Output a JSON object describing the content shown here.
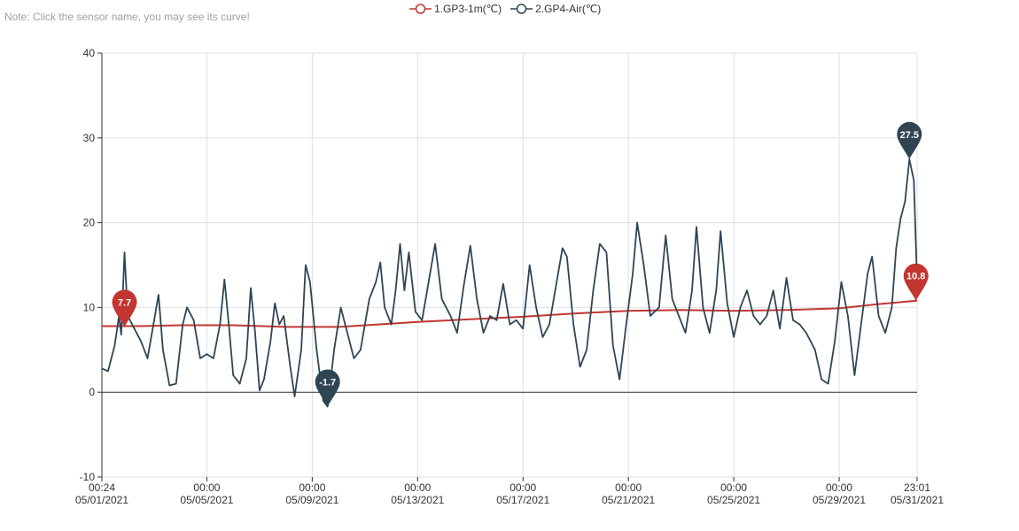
{
  "note": "Note: Click the sensor name, you may see its curve!",
  "colors": {
    "series1": "#c23531",
    "series2": "#2f4554",
    "grid": "#e0e0e0",
    "axis": "#333333",
    "text": "#333333"
  },
  "chart_data": {
    "type": "line",
    "xlim": [
      "2021-05-01 00:24",
      "2021-05-31 23:01"
    ],
    "ylim": [
      -10,
      40
    ],
    "y_ticks": [
      "40",
      "30",
      "20",
      "10",
      "0",
      "-10"
    ],
    "x_ticks": [
      {
        "time": "00:24",
        "date": "05/01/2021"
      },
      {
        "time": "00:00",
        "date": "05/05/2021"
      },
      {
        "time": "00:00",
        "date": "05/09/2021"
      },
      {
        "time": "00:00",
        "date": "05/13/2021"
      },
      {
        "time": "00:00",
        "date": "05/17/2021"
      },
      {
        "time": "00:00",
        "date": "05/21/2021"
      },
      {
        "time": "00:00",
        "date": "05/25/2021"
      },
      {
        "time": "00:00",
        "date": "05/29/2021"
      },
      {
        "time": "23:01",
        "date": "05/31/2021"
      }
    ],
    "grid": true,
    "legend_position": "top-center",
    "series": [
      {
        "name": "1.GP3-1m(℃)",
        "color": "#c23531",
        "points": [
          [
            "2021-05-01 00:24",
            7.8
          ],
          [
            "2021-05-02 12:00",
            7.8
          ],
          [
            "2021-05-04 00:00",
            7.9
          ],
          [
            "2021-05-06 00:00",
            7.9
          ],
          [
            "2021-05-08 00:00",
            7.7
          ],
          [
            "2021-05-10 00:00",
            7.7
          ],
          [
            "2021-05-11 12:00",
            8.0
          ],
          [
            "2021-05-13 00:00",
            8.3
          ],
          [
            "2021-05-15 00:00",
            8.6
          ],
          [
            "2021-05-17 00:00",
            8.9
          ],
          [
            "2021-05-19 00:00",
            9.3
          ],
          [
            "2021-05-21 00:00",
            9.6
          ],
          [
            "2021-05-23 00:00",
            9.7
          ],
          [
            "2021-05-25 00:00",
            9.6
          ],
          [
            "2021-05-27 00:00",
            9.7
          ],
          [
            "2021-05-29 00:00",
            9.9
          ],
          [
            "2021-05-30 12:00",
            10.4
          ],
          [
            "2021-05-31 23:01",
            10.8
          ]
        ],
        "markers": [
          {
            "label": "7.7",
            "x": "2021-05-01 21:00",
            "y": 7.7
          },
          {
            "label": "10.8",
            "x": "2021-05-31 22:00",
            "y": 10.8
          }
        ]
      },
      {
        "name": "2.GP4-Air(℃)",
        "color": "#2f4554",
        "points": [
          [
            "2021-05-01 00:24",
            2.8
          ],
          [
            "2021-05-01 06:00",
            2.5
          ],
          [
            "2021-05-01 12:00",
            5.5
          ],
          [
            "2021-05-01 16:00",
            9.0
          ],
          [
            "2021-05-01 18:00",
            6.8
          ],
          [
            "2021-05-01 21:00",
            16.5
          ],
          [
            "2021-05-02 00:00",
            9.0
          ],
          [
            "2021-05-02 06:00",
            7.5
          ],
          [
            "2021-05-02 12:00",
            6.0
          ],
          [
            "2021-05-02 18:00",
            4.0
          ],
          [
            "2021-05-03 00:00",
            8.5
          ],
          [
            "2021-05-03 04:00",
            11.5
          ],
          [
            "2021-05-03 08:00",
            5.0
          ],
          [
            "2021-05-03 14:00",
            0.8
          ],
          [
            "2021-05-03 20:00",
            1.0
          ],
          [
            "2021-05-04 02:00",
            8.0
          ],
          [
            "2021-05-04 06:00",
            10.0
          ],
          [
            "2021-05-04 12:00",
            8.5
          ],
          [
            "2021-05-04 18:00",
            4.0
          ],
          [
            "2021-05-05 00:00",
            4.5
          ],
          [
            "2021-05-05 06:00",
            4.0
          ],
          [
            "2021-05-05 12:00",
            8.0
          ],
          [
            "2021-05-05 16:00",
            13.3
          ],
          [
            "2021-05-05 20:00",
            8.0
          ],
          [
            "2021-05-06 00:00",
            2.0
          ],
          [
            "2021-05-06 06:00",
            1.0
          ],
          [
            "2021-05-06 12:00",
            4.0
          ],
          [
            "2021-05-06 16:00",
            12.3
          ],
          [
            "2021-05-06 20:00",
            7.0
          ],
          [
            "2021-05-07 00:00",
            0.2
          ],
          [
            "2021-05-07 04:00",
            1.5
          ],
          [
            "2021-05-07 10:00",
            6.0
          ],
          [
            "2021-05-07 14:00",
            10.5
          ],
          [
            "2021-05-07 18:00",
            8.0
          ],
          [
            "2021-05-07 22:00",
            9.0
          ],
          [
            "2021-05-08 04:00",
            3.0
          ],
          [
            "2021-05-08 08:00",
            -0.5
          ],
          [
            "2021-05-08 14:00",
            5.0
          ],
          [
            "2021-05-08 18:00",
            15.0
          ],
          [
            "2021-05-08 22:00",
            13.0
          ],
          [
            "2021-05-09 04:00",
            5.0
          ],
          [
            "2021-05-09 10:00",
            -1.0
          ],
          [
            "2021-05-09 14:00",
            -1.7
          ],
          [
            "2021-05-09 20:00",
            5.0
          ],
          [
            "2021-05-10 02:00",
            10.0
          ],
          [
            "2021-05-10 08:00",
            7.0
          ],
          [
            "2021-05-10 14:00",
            4.0
          ],
          [
            "2021-05-10 20:00",
            5.0
          ],
          [
            "2021-05-11 04:00",
            11.0
          ],
          [
            "2021-05-11 10:00",
            13.0
          ],
          [
            "2021-05-11 14:00",
            15.3
          ],
          [
            "2021-05-11 18:00",
            10.0
          ],
          [
            "2021-05-12 00:00",
            8.0
          ],
          [
            "2021-05-12 04:00",
            12.0
          ],
          [
            "2021-05-12 08:00",
            17.5
          ],
          [
            "2021-05-12 12:00",
            12.0
          ],
          [
            "2021-05-12 16:00",
            16.5
          ],
          [
            "2021-05-12 22:00",
            9.5
          ],
          [
            "2021-05-13 04:00",
            8.5
          ],
          [
            "2021-05-13 10:00",
            13.0
          ],
          [
            "2021-05-13 16:00",
            17.5
          ],
          [
            "2021-05-13 22:00",
            11.0
          ],
          [
            "2021-05-14 06:00",
            9.0
          ],
          [
            "2021-05-14 12:00",
            7.0
          ],
          [
            "2021-05-14 18:00",
            12.5
          ],
          [
            "2021-05-15 00:00",
            17.3
          ],
          [
            "2021-05-15 06:00",
            11.0
          ],
          [
            "2021-05-15 12:00",
            7.0
          ],
          [
            "2021-05-15 18:00",
            9.0
          ],
          [
            "2021-05-16 00:00",
            8.5
          ],
          [
            "2021-05-16 06:00",
            12.8
          ],
          [
            "2021-05-16 12:00",
            8.0
          ],
          [
            "2021-05-16 18:00",
            8.5
          ],
          [
            "2021-05-17 00:00",
            7.5
          ],
          [
            "2021-05-17 06:00",
            15.0
          ],
          [
            "2021-05-17 12:00",
            10.0
          ],
          [
            "2021-05-17 18:00",
            6.5
          ],
          [
            "2021-05-18 00:00",
            8.0
          ],
          [
            "2021-05-18 06:00",
            12.5
          ],
          [
            "2021-05-18 12:00",
            17.0
          ],
          [
            "2021-05-18 16:00",
            16.0
          ],
          [
            "2021-05-18 22:00",
            8.0
          ],
          [
            "2021-05-19 04:00",
            3.0
          ],
          [
            "2021-05-19 10:00",
            5.0
          ],
          [
            "2021-05-19 16:00",
            12.0
          ],
          [
            "2021-05-19 22:00",
            17.5
          ],
          [
            "2021-05-20 04:00",
            16.5
          ],
          [
            "2021-05-20 10:00",
            5.5
          ],
          [
            "2021-05-20 16:00",
            1.5
          ],
          [
            "2021-05-20 22:00",
            8.0
          ],
          [
            "2021-05-21 04:00",
            14.0
          ],
          [
            "2021-05-21 08:00",
            20.0
          ],
          [
            "2021-05-21 14:00",
            15.0
          ],
          [
            "2021-05-21 20:00",
            9.0
          ],
          [
            "2021-05-22 04:00",
            10.0
          ],
          [
            "2021-05-22 10:00",
            18.5
          ],
          [
            "2021-05-22 16:00",
            11.0
          ],
          [
            "2021-05-22 22:00",
            9.0
          ],
          [
            "2021-05-23 04:00",
            7.0
          ],
          [
            "2021-05-23 10:00",
            12.0
          ],
          [
            "2021-05-23 14:00",
            19.5
          ],
          [
            "2021-05-23 20:00",
            10.0
          ],
          [
            "2021-05-24 02:00",
            7.0
          ],
          [
            "2021-05-24 08:00",
            12.0
          ],
          [
            "2021-05-24 12:00",
            19.0
          ],
          [
            "2021-05-24 18:00",
            10.5
          ],
          [
            "2021-05-25 00:00",
            6.5
          ],
          [
            "2021-05-25 06:00",
            10.0
          ],
          [
            "2021-05-25 12:00",
            12.0
          ],
          [
            "2021-05-25 18:00",
            9.0
          ],
          [
            "2021-05-26 00:00",
            8.0
          ],
          [
            "2021-05-26 06:00",
            9.0
          ],
          [
            "2021-05-26 12:00",
            12.0
          ],
          [
            "2021-05-26 18:00",
            7.5
          ],
          [
            "2021-05-27 00:00",
            13.5
          ],
          [
            "2021-05-27 06:00",
            8.5
          ],
          [
            "2021-05-27 12:00",
            8.0
          ],
          [
            "2021-05-27 18:00",
            7.0
          ],
          [
            "2021-05-28 02:00",
            5.0
          ],
          [
            "2021-05-28 08:00",
            1.5
          ],
          [
            "2021-05-28 14:00",
            1.0
          ],
          [
            "2021-05-28 20:00",
            6.0
          ],
          [
            "2021-05-29 02:00",
            13.0
          ],
          [
            "2021-05-29 08:00",
            9.0
          ],
          [
            "2021-05-29 14:00",
            2.0
          ],
          [
            "2021-05-29 20:00",
            8.0
          ],
          [
            "2021-05-30 02:00",
            14.0
          ],
          [
            "2021-05-30 06:00",
            16.0
          ],
          [
            "2021-05-30 12:00",
            9.0
          ],
          [
            "2021-05-30 18:00",
            7.0
          ],
          [
            "2021-05-31 00:00",
            10.0
          ],
          [
            "2021-05-31 04:00",
            17.0
          ],
          [
            "2021-05-31 08:00",
            20.5
          ],
          [
            "2021-05-31 12:00",
            22.5
          ],
          [
            "2021-05-31 16:00",
            27.5
          ],
          [
            "2021-05-31 20:00",
            25.0
          ],
          [
            "2021-05-31 23:01",
            13.0
          ]
        ],
        "markers": [
          {
            "label": "-1.7",
            "x": "2021-05-09 14:00",
            "y": -1.7
          },
          {
            "label": "27.5",
            "x": "2021-05-31 16:00",
            "y": 27.5
          }
        ]
      }
    ]
  }
}
